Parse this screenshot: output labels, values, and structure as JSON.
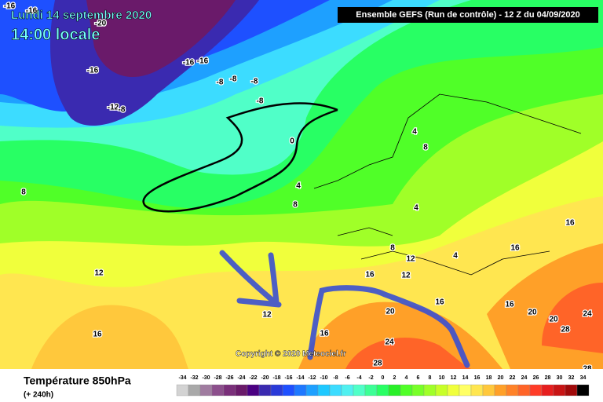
{
  "header": {
    "date": "Lundi 14 septembre 2020",
    "time": "14:00 locale",
    "run": "Ensemble GEFS  (Run de contrôle)  - 12 Z du 04/09/2020"
  },
  "footer": {
    "title": "Température 850hPa",
    "lead": "(+ 240h)",
    "copyright": "Copyright © 2020 Meteociel.fr"
  },
  "contour_labels": [
    -16,
    -16,
    -20,
    -16,
    -16,
    -16,
    -8,
    -8,
    -8,
    -12,
    -8,
    -8,
    0,
    4,
    8,
    4,
    8,
    4,
    12,
    12,
    16,
    16,
    12,
    8,
    16,
    16,
    20,
    24,
    28,
    20,
    24,
    28,
    20,
    16,
    12,
    16,
    16,
    28,
    4,
    8
  ],
  "scale": {
    "values": [
      -34,
      -32,
      -30,
      -28,
      -26,
      -24,
      -22,
      -20,
      -18,
      -16,
      -14,
      -12,
      -10,
      -8,
      -6,
      -4,
      -2,
      0,
      2,
      4,
      6,
      8,
      10,
      12,
      14,
      16,
      18,
      20,
      22,
      24,
      26,
      28,
      30,
      32,
      34
    ],
    "colors": [
      "#d3d3d3",
      "#a9a9a9",
      "#a07ca0",
      "#8c4f8c",
      "#7a2f7a",
      "#6a1a6a",
      "#4b0082",
      "#3a2ab0",
      "#2a3ad8",
      "#1e50ff",
      "#1e78ff",
      "#1ea0ff",
      "#1ec8ff",
      "#3cdcff",
      "#50f0f0",
      "#50ffc8",
      "#3cff96",
      "#28ff64",
      "#28f028",
      "#50ff28",
      "#78ff28",
      "#a0ff28",
      "#c8ff28",
      "#f0ff3c",
      "#ffff64",
      "#ffe650",
      "#ffc83c",
      "#ffa028",
      "#ff8228",
      "#ff6428",
      "#ff3c28",
      "#e61e1e",
      "#c81414",
      "#a00a0a",
      "#000000"
    ]
  }
}
